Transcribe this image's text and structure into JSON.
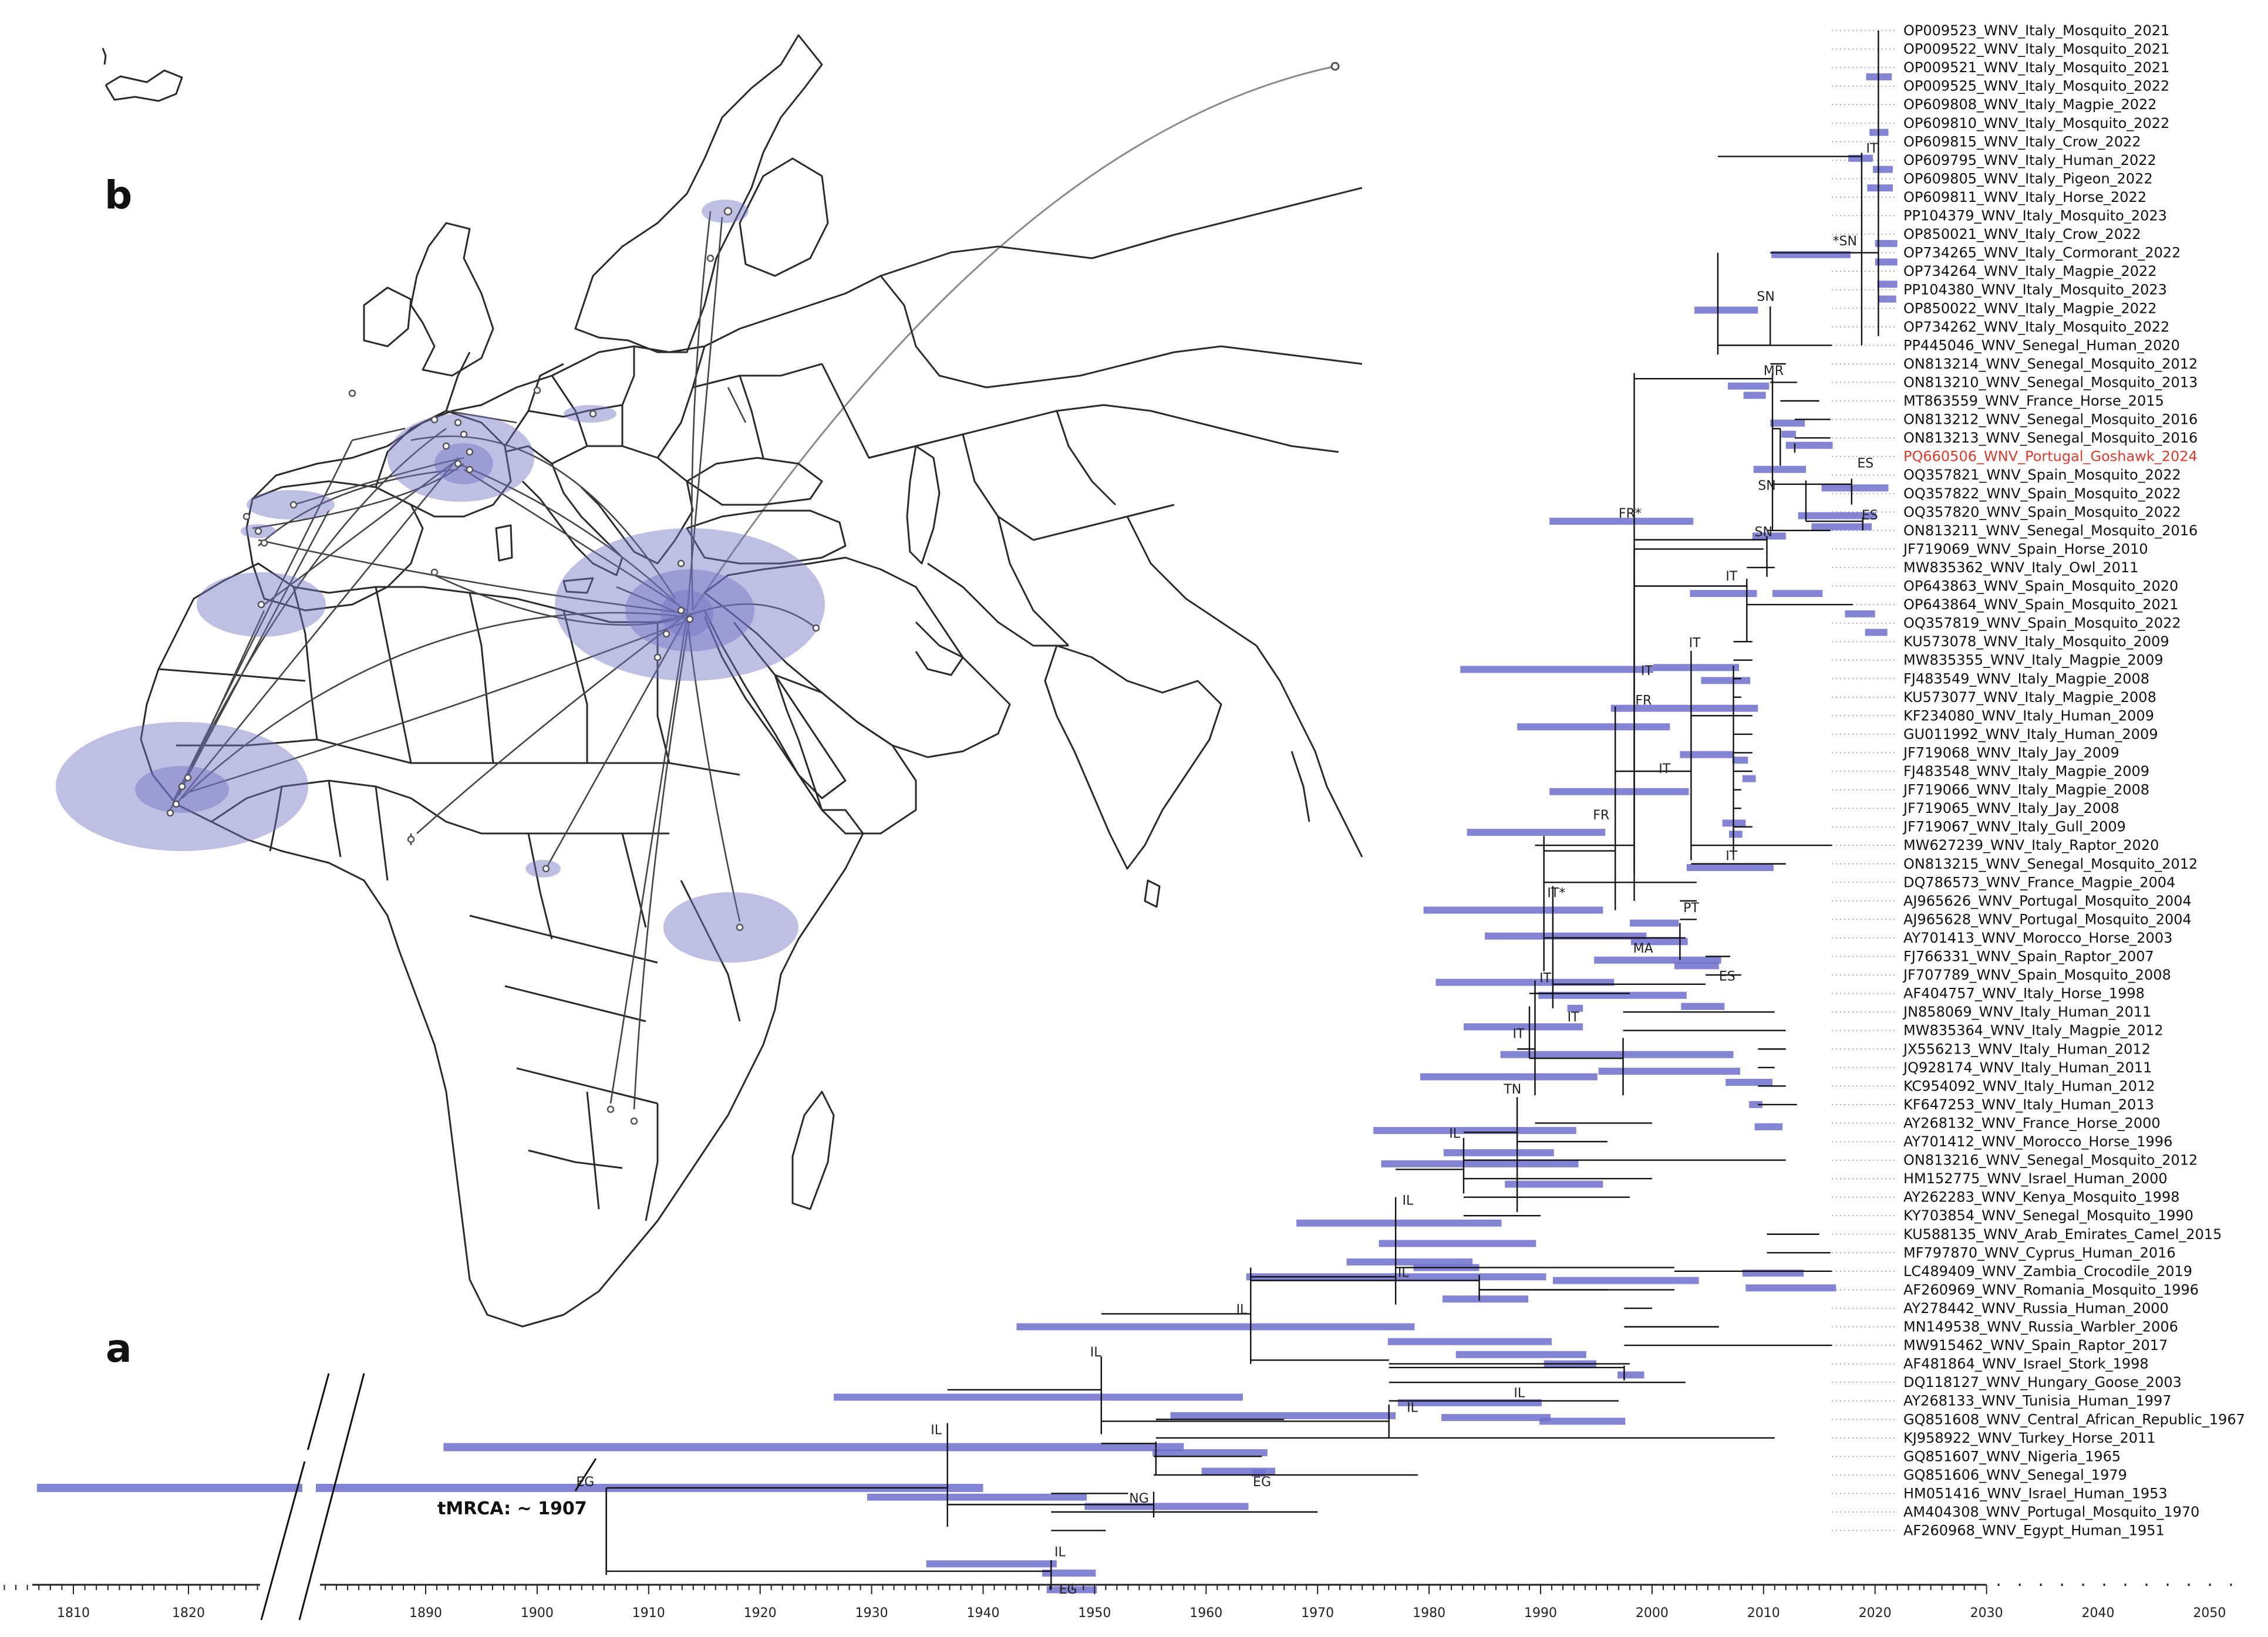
{
  "panels": {
    "a": "a",
    "b": "b"
  },
  "tmrca_label": "tMRCA: ~ 1907",
  "colors": {
    "hpd": "#6f6fce",
    "branch": "#111111",
    "highlight": "#e0392d",
    "map_fill": "#7272c4"
  },
  "axis": {
    "left_ticks": [
      "1810",
      "1820"
    ],
    "main_ticks": [
      "1890",
      "1900",
      "1910",
      "1920",
      "1930",
      "1940",
      "1950",
      "1960",
      "1970",
      "1980",
      "1990",
      "2000",
      "2010",
      "2020",
      "2030",
      "2040",
      "2050"
    ],
    "main_tick_years": [
      1890,
      1900,
      1910,
      1920,
      1930,
      1940,
      1950,
      1960,
      1970,
      1980,
      1990,
      2000,
      2010,
      2020,
      2030,
      2040,
      2050
    ],
    "left_tick_years": [
      1810,
      1820
    ]
  },
  "highlight_tip": 23,
  "tips": [
    "OP009523_WNV_Italy_Mosquito_2021",
    "OP009522_WNV_Italy_Mosquito_2021",
    "OP009521_WNV_Italy_Mosquito_2021",
    "OP009525_WNV_Italy_Mosquito_2022",
    "OP609808_WNV_Italy_Magpie_2022",
    "OP609810_WNV_Italy_Mosquito_2022",
    "OP609815_WNV_Italy_Crow_2022",
    "OP609795_WNV_Italy_Human_2022",
    "OP609805_WNV_Italy_Pigeon_2022",
    "OP609811_WNV_Italy_Horse_2022",
    "PP104379_WNV_Italy_Mosquito_2023",
    "OP850021_WNV_Italy_Crow_2022",
    "OP734265_WNV_Italy_Cormorant_2022",
    "OP734264_WNV_Italy_Magpie_2022",
    "PP104380_WNV_Italy_Mosquito_2023",
    "OP850022_WNV_Italy_Magpie_2022",
    "OP734262_WNV_Italy_Mosquito_2022",
    "PP445046_WNV_Senegal_Human_2020",
    "ON813214_WNV_Senegal_Mosquito_2012",
    "ON813210_WNV_Senegal_Mosquito_2013",
    "MT863559_WNV_France_Horse_2015",
    "ON813212_WNV_Senegal_Mosquito_2016",
    "ON813213_WNV_Senegal_Mosquito_2016",
    "PQ660506_WNV_Portugal_Goshawk_2024",
    "OQ357821_WNV_Spain_Mosquito_2022",
    "OQ357822_WNV_Spain_Mosquito_2022",
    "OQ357820_WNV_Spain_Mosquito_2022",
    "ON813211_WNV_Senegal_Mosquito_2016",
    "JF719069_WNV_Spain_Horse_2010",
    "MW835362_WNV_Italy_Owl_2011",
    "OP643863_WNV_Spain_Mosquito_2020",
    "OP643864_WNV_Spain_Mosquito_2021",
    "OQ357819_WNV_Spain_Mosquito_2022",
    "KU573078_WNV_Italy_Mosquito_2009",
    "MW835355_WNV_Italy_Magpie_2009",
    "FJ483549_WNV_Italy_Magpie_2008",
    "KU573077_WNV_Italy_Magpie_2008",
    "KF234080_WNV_Italy_Human_2009",
    "GU011992_WNV_Italy_Human_2009",
    "JF719068_WNV_Italy_Jay_2009",
    "FJ483548_WNV_Italy_Magpie_2009",
    "JF719066_WNV_Italy_Magpie_2008",
    "JF719065_WNV_Italy_Jay_2008",
    "JF719067_WNV_Italy_Gull_2009",
    "MW627239_WNV_Italy_Raptor_2020",
    "ON813215_WNV_Senegal_Mosquito_2012",
    "DQ786573_WNV_France_Magpie_2004",
    "AJ965626_WNV_Portugal_Mosquito_2004",
    "AJ965628_WNV_Portugal_Mosquito_2004",
    "AY701413_WNV_Morocco_Horse_2003",
    "FJ766331_WNV_Spain_Raptor_2007",
    "JF707789_WNV_Spain_Mosquito_2008",
    "AF404757_WNV_Italy_Horse_1998",
    "JN858069_WNV_Italy_Human_2011",
    "MW835364_WNV_Italy_Magpie_2012",
    "JX556213_WNV_Italy_Human_2012",
    "JQ928174_WNV_Italy_Human_2011",
    "KC954092_WNV_Italy_Human_2012",
    "KF647253_WNV_Italy_Human_2013",
    "AY268132_WNV_France_Horse_2000",
    "AY701412_WNV_Morocco_Horse_1996",
    "ON813216_WNV_Senegal_Mosquito_2012",
    "HM152775_WNV_Israel_Human_2000",
    "AY262283_WNV_Kenya_Mosquito_1998",
    "KY703854_WNV_Senegal_Mosquito_1990",
    "KU588135_WNV_Arab_Emirates_Camel_2015",
    "MF797870_WNV_Cyprus_Human_2016",
    "LC489409_WNV_Zambia_Crocodile_2019",
    "AF260969_WNV_Romania_Mosquito_1996",
    "AY278442_WNV_Russia_Human_2000",
    "MN149538_WNV_Russia_Warbler_2006",
    "MW915462_WNV_Spain_Raptor_2017",
    "AF481864_WNV_Israel_Stork_1998",
    "DQ118127_WNV_Hungary_Goose_2003",
    "AY268133_WNV_Tunisia_Human_1997",
    "GQ851608_WNV_Central_African_Republic_1967",
    "KJ958922_WNV_Turkey_Horse_2011",
    "GQ851607_WNV_Nigeria_1965",
    "GQ851606_WNV_Senegal_1979",
    "HM051416_WNV_Israel_Human_1953",
    "AM404308_WNV_Portugal_Mosquito_1970",
    "AF260968_WNV_Egypt_Human_1951"
  ],
  "node_labels": [
    {
      "text": "IT",
      "year": 2019.2,
      "row": 6.6
    },
    {
      "text": "*SN",
      "year": 2016.2,
      "row": 11.6
    },
    {
      "text": "SN",
      "year": 2009.4,
      "row": 14.6
    },
    {
      "text": "MR",
      "year": 2010.0,
      "row": 18.6
    },
    {
      "text": "ES",
      "year": 2018.4,
      "row": 23.6
    },
    {
      "text": "SN",
      "year": 2009.5,
      "row": 24.8
    },
    {
      "text": "ES",
      "year": 2018.8,
      "row": 26.4
    },
    {
      "text": "SN",
      "year": 2009.2,
      "row": 27.3
    },
    {
      "text": "FR*",
      "year": 1997.0,
      "row": 26.3
    },
    {
      "text": "IT",
      "year": 2006.6,
      "row": 29.7
    },
    {
      "text": "IT",
      "year": 2003.3,
      "row": 33.3
    },
    {
      "text": "IT",
      "year": 1999.0,
      "row": 34.8
    },
    {
      "text": "FR",
      "year": 1998.5,
      "row": 36.4
    },
    {
      "text": "IT",
      "year": 2000.6,
      "row": 40.1
    },
    {
      "text": "FR",
      "year": 1994.7,
      "row": 42.6
    },
    {
      "text": "IT",
      "year": 2006.6,
      "row": 44.8
    },
    {
      "text": "IT*",
      "year": 1990.6,
      "row": 46.8
    },
    {
      "text": "PT",
      "year": 2002.8,
      "row": 47.6
    },
    {
      "text": "MA",
      "year": 1998.3,
      "row": 49.8
    },
    {
      "text": "IT",
      "year": 1989.9,
      "row": 51.4
    },
    {
      "text": "ES",
      "year": 2006.0,
      "row": 51.3
    },
    {
      "text": "IT",
      "year": 1992.4,
      "row": 53.5
    },
    {
      "text": "IT",
      "year": 1987.5,
      "row": 54.4
    },
    {
      "text": "TN",
      "year": 1986.7,
      "row": 57.4
    },
    {
      "text": "IL",
      "year": 1981.8,
      "row": 59.8
    },
    {
      "text": "IL",
      "year": 1977.6,
      "row": 63.4
    },
    {
      "text": "IL",
      "year": 1977.2,
      "row": 67.3
    },
    {
      "text": "IL",
      "year": 1962.7,
      "row": 69.3
    },
    {
      "text": "IL",
      "year": 1949.6,
      "row": 71.6
    },
    {
      "text": "IL",
      "year": 1987.6,
      "row": 73.8
    },
    {
      "text": "IL",
      "year": 1978.0,
      "row": 74.6
    },
    {
      "text": "IL",
      "year": 1935.3,
      "row": 75.8
    },
    {
      "text": "EG",
      "year": 1964.2,
      "row": 78.6
    },
    {
      "text": "EG",
      "year": 1903.5,
      "row": 78.6
    },
    {
      "text": "NG",
      "year": 1953.1,
      "row": 79.5
    },
    {
      "text": "IL",
      "year": 1946.4,
      "row": 82.4
    },
    {
      "text": "EG",
      "year": 1946.8,
      "row": 84.4
    }
  ]
}
